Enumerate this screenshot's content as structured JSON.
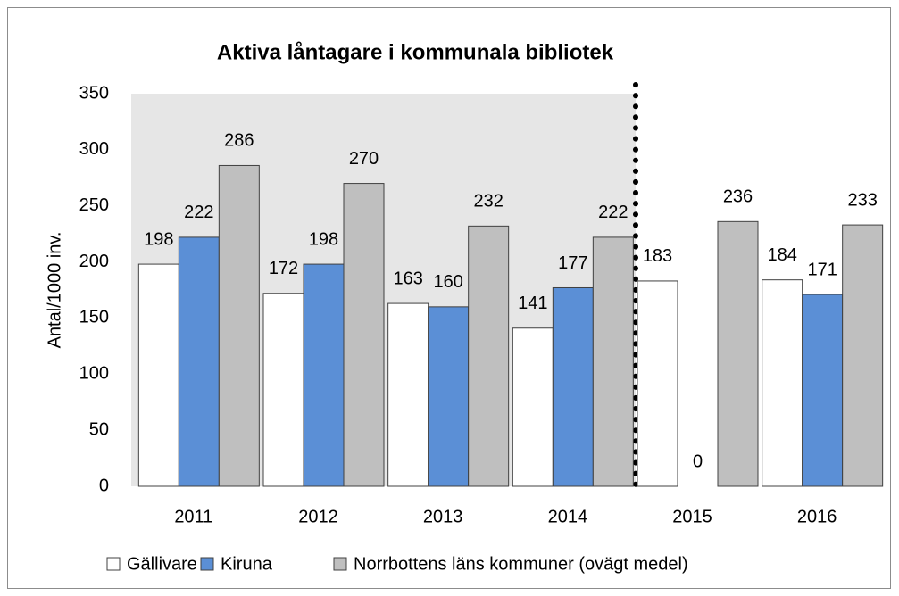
{
  "chart_data": {
    "type": "bar",
    "title": "Aktiva låntagare i kommunala bibliotek",
    "y_label": "Antal/1000 inv.",
    "categories": [
      "2011",
      "2012",
      "2013",
      "2014",
      "2015",
      "2016"
    ],
    "series": [
      {
        "name": "Gällivare",
        "color": "#ffffff",
        "values": [
          198,
          172,
          163,
          141,
          183,
          184
        ]
      },
      {
        "name": "Kiruna",
        "color": "#5b8fd6",
        "values": [
          222,
          198,
          160,
          177,
          0,
          171
        ]
      },
      {
        "name": "Norrbottens läns kommuner (ovägt medel)",
        "color": "#bfbfbf",
        "values": [
          286,
          270,
          232,
          222,
          236,
          233
        ]
      }
    ],
    "ylim": [
      0,
      350
    ],
    "yticks": [
      0,
      50,
      100,
      150,
      200,
      250,
      300,
      350
    ],
    "legend": "bottom"
  }
}
